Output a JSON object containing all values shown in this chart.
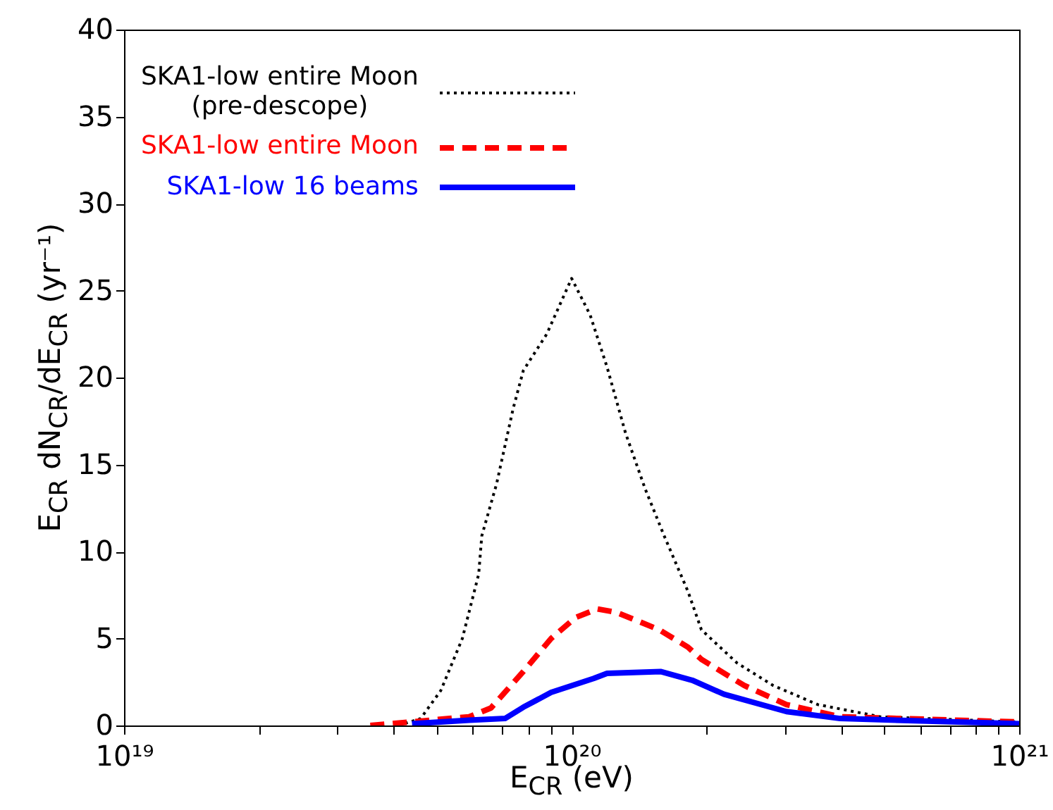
{
  "chart_data": {
    "type": "line",
    "xlabel": "E$_{CR}$ (eV)",
    "ylabel": "E$_{CR}$ dN$_{CR}$/dE$_{CR}$ (yr⁻¹)",
    "log": "x",
    "grid": false,
    "legend": "top left",
    "marker": "none",
    "xlim": [
      1e+19,
      1e+21
    ],
    "ylim": [
      0,
      40
    ],
    "xticks": [
      {
        "value": 1e+19,
        "label": "10¹⁹"
      },
      {
        "value": 2e+19,
        "label": null
      },
      {
        "value": 3e+19,
        "label": null
      },
      {
        "value": 4e+19,
        "label": null
      },
      {
        "value": 5e+19,
        "label": null
      },
      {
        "value": 6e+19,
        "label": null
      },
      {
        "value": 7e+19,
        "label": null
      },
      {
        "value": 8e+19,
        "label": null
      },
      {
        "value": 9e+19,
        "label": null
      },
      {
        "value": 1e+20,
        "label": "10²⁰"
      },
      {
        "value": 2e+20,
        "label": null
      },
      {
        "value": 3e+20,
        "label": null
      },
      {
        "value": 4e+20,
        "label": null
      },
      {
        "value": 5e+20,
        "label": null
      },
      {
        "value": 6e+20,
        "label": null
      },
      {
        "value": 7e+20,
        "label": null
      },
      {
        "value": 8e+20,
        "label": null
      },
      {
        "value": 9e+20,
        "label": null
      },
      {
        "value": 1e+21,
        "label": "10²¹"
      }
    ],
    "yticks": [
      0,
      5,
      10,
      15,
      20,
      25,
      30,
      35,
      40
    ],
    "series": [
      {
        "name": "SKA1-low entire Moon\n(pre-descope)",
        "color": "#000000",
        "line_style": "dotted",
        "x": [
          4.1e+19,
          4.6e+19,
          5.1e+19,
          5.7e+19,
          6.2e+19,
          6.3e+19,
          6.8e+19,
          7.4e+19,
          7.8e+19,
          8.8e+19,
          1e+20,
          1.1e+20,
          1.2e+20,
          1.32e+20,
          1.46e+20,
          1.61e+20,
          1.82e+20,
          1.95e+20,
          2.34e+20,
          2.82e+20,
          3.55e+20,
          4.9e+20,
          1e+21
        ],
        "values": [
          0,
          0.4,
          2.0,
          5.0,
          8.7,
          10.9,
          13.9,
          18.2,
          20.4,
          22.5,
          25.7,
          23.6,
          20.6,
          16.8,
          13.6,
          10.9,
          7.7,
          5.5,
          3.6,
          2.3,
          1.2,
          0.5,
          0.2
        ]
      },
      {
        "name": "SKA1-low entire Moon",
        "color": "#ff0000",
        "line_style": "dashed",
        "x": [
          3.55e+19,
          5.9e+19,
          6.6e+19,
          7.8e+19,
          9e+19,
          1.02e+20,
          1.14e+20,
          1.26e+20,
          1.57e+20,
          1.82e+20,
          1.95e+20,
          2.43e+20,
          3.02e+20,
          3.98e+20,
          1e+21
        ],
        "values": [
          0,
          0.5,
          1.0,
          3.1,
          5.0,
          6.2,
          6.7,
          6.5,
          5.5,
          4.5,
          3.8,
          2.3,
          1.2,
          0.5,
          0.2
        ]
      },
      {
        "name": "SKA1-low 16 beams",
        "color": "#0000ff",
        "line_style": "solid",
        "x": [
          4.4e+19,
          5.9e+19,
          7.1e+19,
          7.8e+19,
          9e+19,
          1.12e+20,
          1.2e+20,
          1.58e+20,
          1.86e+20,
          2.19e+20,
          3.02e+20,
          3.98e+20,
          1e+21
        ],
        "values": [
          0.1,
          0.3,
          0.4,
          1.05,
          1.9,
          2.7,
          3.0,
          3.1,
          2.6,
          1.8,
          0.8,
          0.4,
          0.1
        ]
      }
    ]
  }
}
